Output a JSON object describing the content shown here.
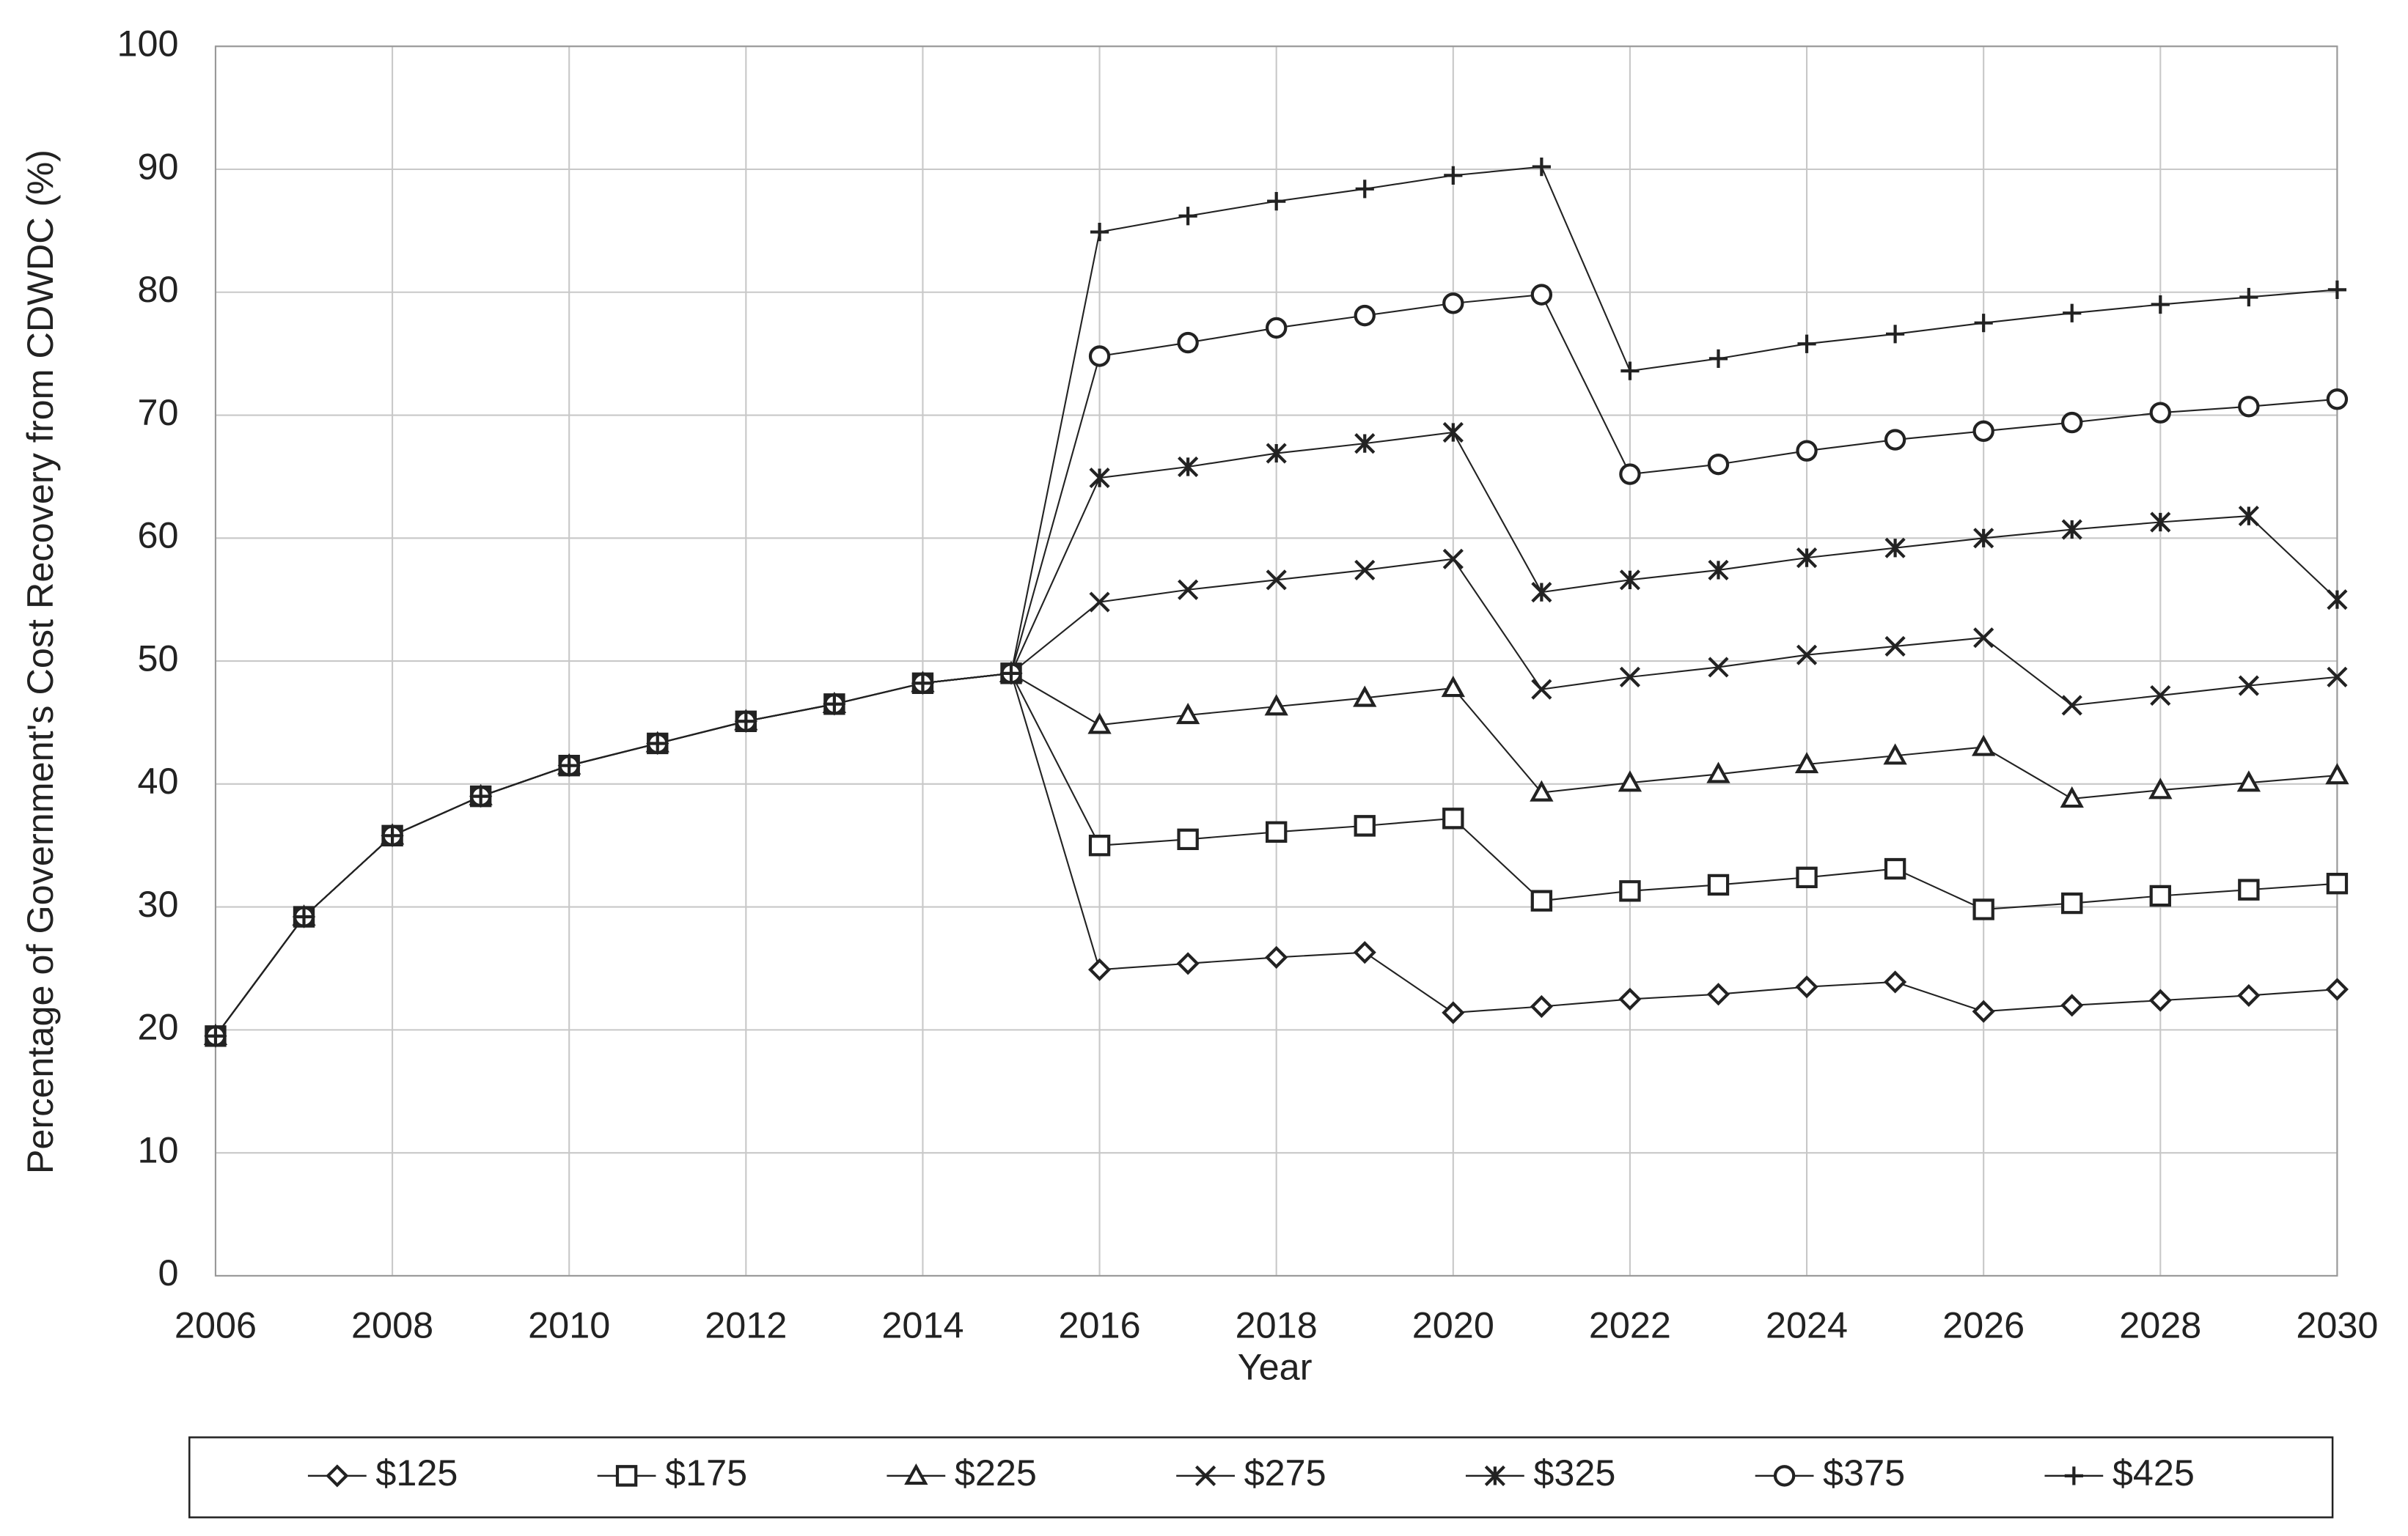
{
  "chart_data": {
    "type": "line",
    "x_label": "Year",
    "y_label": "Percentage of Government's Cost Recovery from CDWDC (%)",
    "x": [
      2006,
      2007,
      2008,
      2009,
      2010,
      2011,
      2012,
      2013,
      2014,
      2015,
      2016,
      2017,
      2018,
      2019,
      2020,
      2021,
      2022,
      2023,
      2024,
      2025,
      2026,
      2027,
      2028,
      2029,
      2030
    ],
    "xlim": [
      2006,
      2030
    ],
    "xticks": [
      2006,
      2008,
      2010,
      2012,
      2014,
      2016,
      2018,
      2020,
      2022,
      2024,
      2026,
      2028,
      2030
    ],
    "ylim": [
      0,
      100
    ],
    "yticks": [
      0,
      10,
      20,
      30,
      40,
      50,
      60,
      70,
      80,
      90,
      100
    ],
    "grid": true,
    "legend": "bottom",
    "series": [
      {
        "name": "$125",
        "color": "#222222",
        "marker": "diamond",
        "values": [
          19.5,
          29.2,
          35.8,
          39,
          41.5,
          43.3,
          45.1,
          46.5,
          48.2,
          49,
          24.9,
          25.4,
          25.9,
          26.3,
          21.4,
          21.9,
          22.5,
          22.9,
          23.5,
          23.9,
          21.5,
          22,
          22.4,
          22.8,
          23.3
        ]
      },
      {
        "name": "$175",
        "color": "#222222",
        "marker": "square",
        "values": [
          19.5,
          29.2,
          35.8,
          39,
          41.5,
          43.3,
          45.1,
          46.5,
          48.2,
          49,
          35,
          35.5,
          36.1,
          36.6,
          37.2,
          30.5,
          31.3,
          31.8,
          32.4,
          33.1,
          29.8,
          30.3,
          30.9,
          31.4,
          31.9
        ]
      },
      {
        "name": "$225",
        "color": "#222222",
        "marker": "triangle",
        "values": [
          19.5,
          29.2,
          35.8,
          39,
          41.5,
          43.3,
          45.1,
          46.5,
          48.2,
          49,
          44.8,
          45.6,
          46.3,
          47,
          47.8,
          39.3,
          40.1,
          40.8,
          41.6,
          42.3,
          43,
          38.8,
          39.5,
          40.1,
          40.7
        ]
      },
      {
        "name": "$275",
        "color": "#222222",
        "marker": "x",
        "values": [
          19.5,
          29.2,
          35.8,
          39,
          41.5,
          43.3,
          45.1,
          46.5,
          48.2,
          49,
          54.8,
          55.8,
          56.6,
          57.4,
          58.3,
          47.7,
          48.7,
          49.5,
          50.5,
          51.2,
          51.9,
          46.4,
          47.2,
          48,
          48.7
        ]
      },
      {
        "name": "$325",
        "color": "#222222",
        "marker": "star",
        "values": [
          19.5,
          29.2,
          35.8,
          39,
          41.5,
          43.3,
          45.1,
          46.5,
          48.2,
          49,
          64.9,
          65.8,
          66.9,
          67.7,
          68.6,
          55.6,
          56.6,
          57.4,
          58.4,
          59.2,
          60,
          60.7,
          61.3,
          61.8,
          55
        ]
      },
      {
        "name": "$375",
        "color": "#222222",
        "marker": "circle",
        "values": [
          19.5,
          29.2,
          35.8,
          39,
          41.5,
          43.3,
          45.1,
          46.5,
          48.2,
          49,
          74.8,
          75.9,
          77.1,
          78.1,
          79.1,
          79.8,
          65.2,
          66,
          67.1,
          68,
          68.7,
          69.4,
          70.2,
          70.7,
          71.3
        ]
      },
      {
        "name": "$425",
        "color": "#222222",
        "marker": "plus",
        "values": [
          19.5,
          29.2,
          35.8,
          39,
          41.5,
          43.3,
          45.1,
          46.5,
          48.2,
          49,
          84.9,
          86.2,
          87.4,
          88.4,
          89.5,
          90.2,
          73.6,
          74.6,
          75.8,
          76.6,
          77.5,
          78.3,
          79,
          79.6,
          80.2
        ]
      }
    ]
  }
}
